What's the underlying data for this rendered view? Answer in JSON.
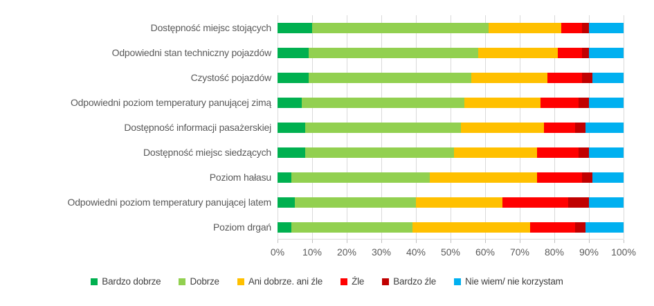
{
  "chart_data": {
    "type": "bar",
    "stacked": true,
    "orientation": "horizontal",
    "title": "",
    "categories": [
      "Dostępność miejsc stojących",
      "Odpowiedni stan techniczny pojazdów",
      "Czystość pojazdów",
      "Odpowiedni poziom temperatury panującej zimą",
      "Dostępność informacji pasażerskiej",
      "Dostępność miejsc siedzących",
      "Poziom hałasu",
      "Odpowiedni poziom temperatury panującej latem",
      "Poziom drgań"
    ],
    "series": [
      {
        "name": "Bardzo dobrze",
        "color": "#00B050",
        "values": [
          10,
          9,
          9,
          7,
          8,
          8,
          4,
          5,
          4
        ]
      },
      {
        "name": "Dobrze",
        "color": "#92D050",
        "values": [
          51,
          49,
          47,
          47,
          45,
          43,
          40,
          35,
          35
        ]
      },
      {
        "name": "Ani dobrze. ani źle",
        "color": "#FFC000",
        "values": [
          21,
          23,
          22,
          22,
          24,
          24,
          31,
          25,
          34
        ]
      },
      {
        "name": "Źle",
        "color": "#FF0000",
        "values": [
          6,
          7,
          10,
          11,
          9,
          12,
          13,
          19,
          13
        ]
      },
      {
        "name": "Bardzo źle",
        "color": "#C00000",
        "values": [
          2,
          2,
          3,
          3,
          3,
          3,
          3,
          6,
          3
        ]
      },
      {
        "name": "Nie wiem/ nie korzystam",
        "color": "#00B0F0",
        "values": [
          10,
          10,
          9,
          10,
          11,
          10,
          9,
          10,
          11
        ]
      }
    ],
    "x_ticks": [
      "0%",
      "10%",
      "20%",
      "30%",
      "40%",
      "50%",
      "60%",
      "70%",
      "80%",
      "90%",
      "100%"
    ],
    "xlim": [
      0,
      100
    ],
    "grid": "vertical",
    "grid_color": "#D9D9D9",
    "axis_text_color": "#595959",
    "legend_position": "bottom"
  }
}
